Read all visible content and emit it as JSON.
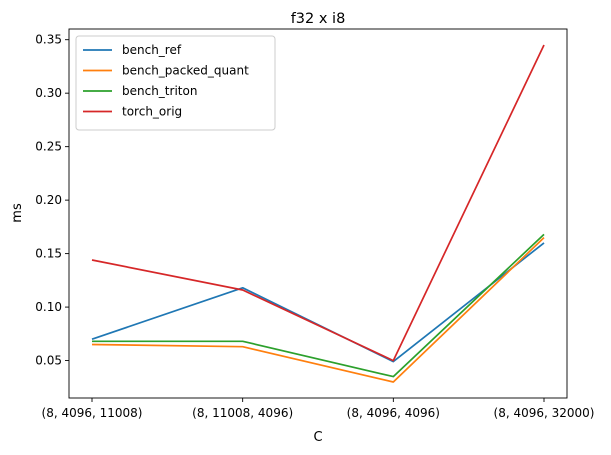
{
  "chart_data": {
    "type": "line",
    "title": "f32 x i8",
    "xlabel": "C",
    "ylabel": "ms",
    "categories": [
      "(8, 4096, 11008)",
      "(8, 11008, 4096)",
      "(8, 4096, 4096)",
      "(8, 4096, 32000)"
    ],
    "ylim": [
      0.015,
      0.36
    ],
    "yticks": [
      0.05,
      0.1,
      0.15,
      0.2,
      0.25,
      0.3,
      0.35
    ],
    "ytick_labels": [
      "0.05",
      "0.10",
      "0.15",
      "0.20",
      "0.25",
      "0.30",
      "0.35"
    ],
    "grid": false,
    "legend_position": "upper-left",
    "series": [
      {
        "name": "bench_ref",
        "color": "#1f77b4",
        "values": [
          0.07,
          0.118,
          0.049,
          0.16
        ]
      },
      {
        "name": "bench_packed_quant",
        "color": "#ff7f0e",
        "values": [
          0.065,
          0.063,
          0.03,
          0.165
        ]
      },
      {
        "name": "bench_triton",
        "color": "#2ca02c",
        "values": [
          0.068,
          0.068,
          0.035,
          0.168
        ]
      },
      {
        "name": "torch_orig",
        "color": "#d62728",
        "values": [
          0.144,
          0.116,
          0.05,
          0.345
        ]
      }
    ]
  }
}
